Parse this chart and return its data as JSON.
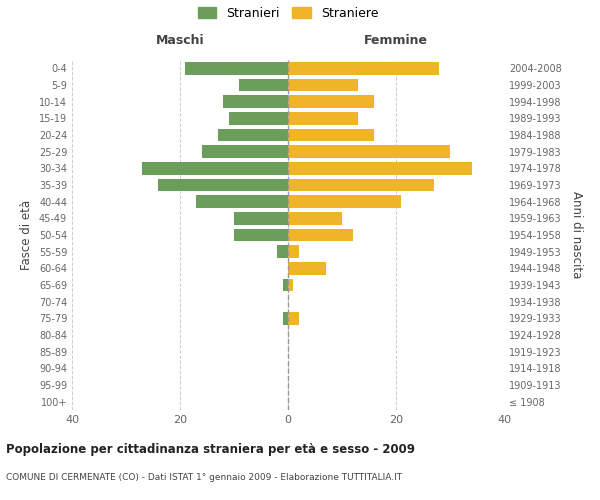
{
  "age_groups": [
    "100+",
    "95-99",
    "90-94",
    "85-89",
    "80-84",
    "75-79",
    "70-74",
    "65-69",
    "60-64",
    "55-59",
    "50-54",
    "45-49",
    "40-44",
    "35-39",
    "30-34",
    "25-29",
    "20-24",
    "15-19",
    "10-14",
    "5-9",
    "0-4"
  ],
  "birth_years": [
    "≤ 1908",
    "1909-1913",
    "1914-1918",
    "1919-1923",
    "1924-1928",
    "1929-1933",
    "1934-1938",
    "1939-1943",
    "1944-1948",
    "1949-1953",
    "1954-1958",
    "1959-1963",
    "1964-1968",
    "1969-1973",
    "1974-1978",
    "1979-1983",
    "1984-1988",
    "1989-1993",
    "1994-1998",
    "1999-2003",
    "2004-2008"
  ],
  "maschi": [
    0,
    0,
    0,
    0,
    0,
    1,
    0,
    1,
    0,
    2,
    10,
    10,
    17,
    24,
    27,
    16,
    13,
    11,
    12,
    9,
    19
  ],
  "femmine": [
    0,
    0,
    0,
    0,
    0,
    2,
    0,
    1,
    7,
    2,
    12,
    10,
    21,
    27,
    34,
    30,
    16,
    13,
    16,
    13,
    28
  ],
  "maschi_color": "#6a9e5a",
  "femmine_color": "#f0b429",
  "bg_color": "#ffffff",
  "grid_color": "#cccccc",
  "title": "Popolazione per cittadinanza straniera per età e sesso - 2009",
  "subtitle": "COMUNE DI CERMENATE (CO) - Dati ISTAT 1° gennaio 2009 - Elaborazione TUTTITALIA.IT",
  "ylabel_left": "Fasce di età",
  "ylabel_right": "Anni di nascita",
  "xlabel_left": "Maschi",
  "xlabel_top_right": "Femmine",
  "legend_maschi": "Stranieri",
  "legend_femmine": "Straniere",
  "xlim": 40,
  "bar_height": 0.75
}
